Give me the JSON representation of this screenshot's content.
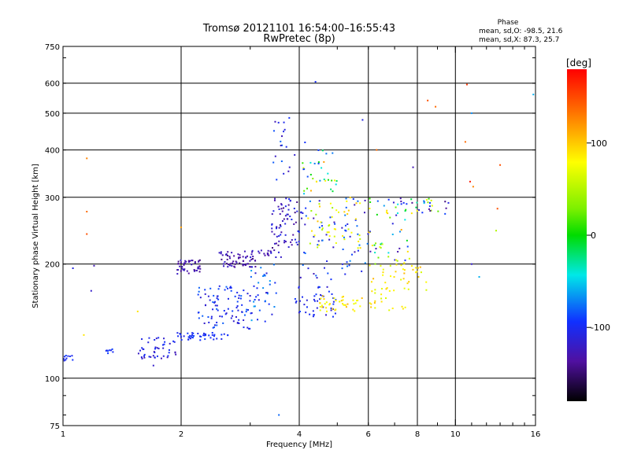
{
  "chart_data": {
    "type": "scatter",
    "title": "Tromsø 20121101 16:54:00–16:55:43",
    "subtitle": "RwPretec (8p)",
    "xlabel": "Frequency [MHz]",
    "ylabel": "Stationary phase Virtual Height [km]",
    "xscale": "log",
    "yscale": "log",
    "xlim": [
      1,
      16
    ],
    "ylim": [
      75,
      750
    ],
    "x_ticks": [
      1,
      2,
      4,
      6,
      8,
      10,
      16
    ],
    "y_ticks": [
      75,
      100,
      200,
      300,
      400,
      500,
      600,
      750
    ],
    "x_grid": [
      2,
      4,
      6,
      8,
      10
    ],
    "y_grid": [
      100,
      200,
      300,
      400,
      500,
      600
    ],
    "grid": true,
    "phase_stats": {
      "header": "Phase",
      "o_line": "mean, sd,O: -98.5, 21.6",
      "x_line": "mean, sd,X: 87.3, 25.7"
    },
    "colorbar": {
      "label": "[deg]",
      "range": [
        -180,
        180
      ],
      "ticks": [
        100,
        0,
        -100
      ]
    },
    "clusters": [
      {
        "f": [
          1.0,
          1.06
        ],
        "h": [
          111,
          115
        ],
        "phase": [
          -110,
          -90
        ],
        "n": 10
      },
      {
        "f": [
          1.28,
          1.35
        ],
        "h": [
          115,
          120
        ],
        "phase": [
          -110,
          -90
        ],
        "n": 8
      },
      {
        "f": [
          1.55,
          1.95
        ],
        "h": [
          112,
          128
        ],
        "phase": [
          -130,
          -95
        ],
        "n": 45
      },
      {
        "f": [
          1.95,
          2.7
        ],
        "h": [
          126,
          132
        ],
        "phase": [
          -110,
          -90
        ],
        "n": 45
      },
      {
        "f": [
          1.95,
          2.25
        ],
        "h": [
          188,
          205
        ],
        "phase": [
          -150,
          -120
        ],
        "n": 45
      },
      {
        "f": [
          2.5,
          3.1
        ],
        "h": [
          196,
          216
        ],
        "phase": [
          -150,
          -120
        ],
        "n": 60
      },
      {
        "f": [
          3.0,
          3.6
        ],
        "h": [
          208,
          218
        ],
        "phase": [
          -140,
          -110
        ],
        "n": 20
      },
      {
        "f": [
          2.2,
          3.0
        ],
        "h": [
          135,
          175
        ],
        "phase": [
          -120,
          -80
        ],
        "n": 90
      },
      {
        "f": [
          3.0,
          3.5
        ],
        "h": [
          140,
          200
        ],
        "phase": [
          -120,
          -60
        ],
        "n": 40
      },
      {
        "f": [
          3.4,
          4.0
        ],
        "h": [
          220,
          300
        ],
        "phase": [
          -150,
          -100
        ],
        "n": 70
      },
      {
        "f": [
          3.4,
          3.9
        ],
        "h": [
          320,
          520
        ],
        "phase": [
          -130,
          -80
        ],
        "n": 20
      },
      {
        "f": [
          3.9,
          5.0
        ],
        "h": [
          145,
          175
        ],
        "phase": [
          -120,
          -90
        ],
        "n": 45
      },
      {
        "f": [
          4.0,
          6.0
        ],
        "h": [
          180,
          300
        ],
        "phase": [
          -130,
          -70
        ],
        "n": 70
      },
      {
        "f": [
          4.2,
          5.8
        ],
        "h": [
          220,
          300
        ],
        "phase": [
          40,
          110
        ],
        "n": 45
      },
      {
        "f": [
          4.5,
          5.8
        ],
        "h": [
          150,
          165
        ],
        "phase": [
          70,
          110
        ],
        "n": 40
      },
      {
        "f": [
          4.0,
          5.0
        ],
        "h": [
          300,
          420
        ],
        "phase": [
          -100,
          120
        ],
        "n": 35
      },
      {
        "f": [
          6.0,
          7.6
        ],
        "h": [
          150,
          200
        ],
        "phase": [
          60,
          110
        ],
        "n": 40
      },
      {
        "f": [
          6.0,
          7.6
        ],
        "h": [
          200,
          300
        ],
        "phase": [
          -140,
          120
        ],
        "n": 55
      },
      {
        "f": [
          7.7,
          9.5
        ],
        "h": [
          270,
          300
        ],
        "phase": [
          -150,
          110
        ],
        "n": 25
      },
      {
        "f": [
          7.3,
          8.5
        ],
        "h": [
          170,
          210
        ],
        "phase": [
          60,
          110
        ],
        "n": 20
      }
    ],
    "outliers": [
      [
        1.15,
        380,
        130
      ],
      [
        1.15,
        275,
        140
      ],
      [
        1.15,
        240,
        150
      ],
      [
        1.13,
        130,
        90
      ],
      [
        1.06,
        195,
        -110
      ],
      [
        1.2,
        198,
        -130
      ],
      [
        1.18,
        170,
        -120
      ],
      [
        1.7,
        108,
        -120
      ],
      [
        3.55,
        80,
        -80
      ],
      [
        4.4,
        605,
        -100
      ],
      [
        5.8,
        480,
        -110
      ],
      [
        6.3,
        400,
        140
      ],
      [
        7.8,
        360,
        -130
      ],
      [
        8.5,
        540,
        150
      ],
      [
        8.9,
        520,
        140
      ],
      [
        10.7,
        595,
        160
      ],
      [
        11.0,
        500,
        -70
      ],
      [
        10.6,
        420,
        140
      ],
      [
        13.0,
        365,
        150
      ],
      [
        15.8,
        560,
        -60
      ],
      [
        12.8,
        280,
        150
      ],
      [
        10.9,
        330,
        170
      ],
      [
        11.1,
        320,
        130
      ],
      [
        11.0,
        200,
        -120
      ],
      [
        11.5,
        185,
        -60
      ],
      [
        12.7,
        245,
        50
      ],
      [
        9.6,
        290,
        -110
      ],
      [
        2.0,
        250,
        120
      ],
      [
        1.55,
        150,
        90
      ]
    ]
  }
}
